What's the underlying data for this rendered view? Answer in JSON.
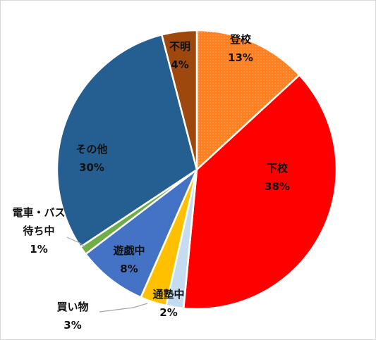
{
  "chart_data": {
    "type": "pie",
    "title": "",
    "slices": [
      {
        "label": "登校",
        "value": 13,
        "pct_label": "13%",
        "color": "#ff7f1f",
        "pattern": "dots"
      },
      {
        "label": "下校",
        "value": 38,
        "pct_label": "38%",
        "color": "#ff0000",
        "pattern": "none"
      },
      {
        "label": "通塾中",
        "value": 2,
        "pct_label": "2%",
        "color": "#c5dcf0",
        "pattern": "none"
      },
      {
        "label": "買い物",
        "value": 3,
        "pct_label": "3%",
        "color": "#ffc000",
        "pattern": "none"
      },
      {
        "label": "遊戯中",
        "value": 8,
        "pct_label": "8%",
        "color": "#4472c4",
        "pattern": "none"
      },
      {
        "label": "電車・バス待ち中",
        "label_lines": [
          "電車・バス",
          "待ち中"
        ],
        "value": 1,
        "pct_label": "1%",
        "color": "#70ad47",
        "pattern": "none"
      },
      {
        "label": "その他",
        "value": 30,
        "pct_label": "30%",
        "color": "#255e91",
        "pattern": "none"
      },
      {
        "label": "不明",
        "value": 4,
        "pct_label": "4%",
        "color": "#9e480e",
        "pattern": "none"
      }
    ]
  }
}
